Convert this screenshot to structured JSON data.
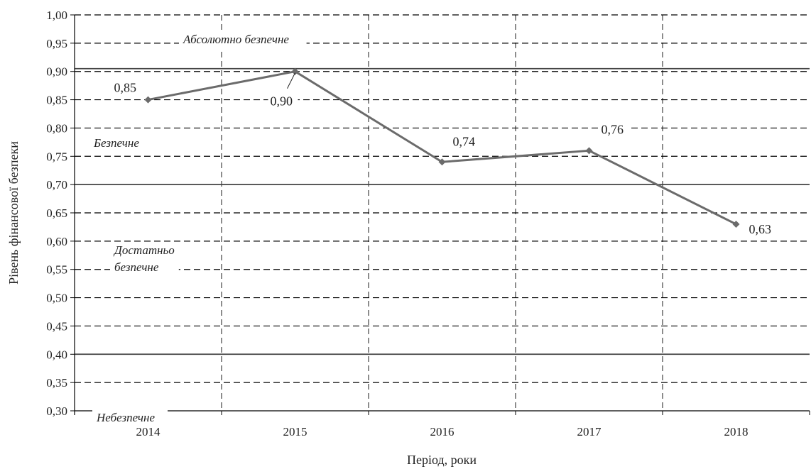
{
  "chart_data": {
    "type": "line",
    "title": "",
    "xlabel": "Період, роки",
    "ylabel": "Рівень фінансової безпеки",
    "ylim": [
      0.3,
      1.0
    ],
    "grid": true,
    "y_ticks": [
      "0,30",
      "0,35",
      "0,40",
      "0,45",
      "0,50",
      "0,55",
      "0,60",
      "0,65",
      "0,70",
      "0,75",
      "0,80",
      "0,85",
      "0,90",
      "0,95",
      "1,00"
    ],
    "categories": [
      "2014",
      "2015",
      "2016",
      "2017",
      "2018"
    ],
    "series": [
      {
        "values": [
          0.85,
          0.9,
          0.74,
          0.76,
          0.63
        ],
        "labels": [
          "0,85",
          "0,90",
          "0,74",
          "0,76",
          "0,63"
        ],
        "color": "#6b6b6b"
      }
    ],
    "thresholds": [
      0.905,
      0.7,
      0.4
    ],
    "zones": [
      {
        "label": "Абсолютно безпечне"
      },
      {
        "label": "Безпечне"
      },
      {
        "label": "Достатньо безпечне"
      },
      {
        "label": "Небезпечне"
      }
    ]
  }
}
